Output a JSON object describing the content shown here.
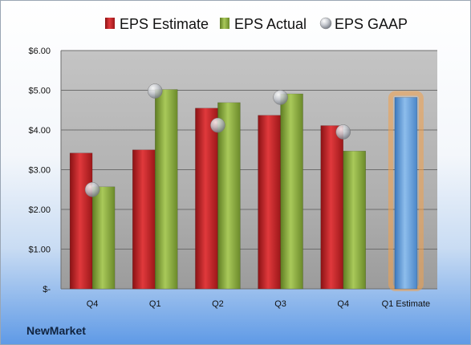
{
  "brand": "NewMarket",
  "chart_data": {
    "type": "bar",
    "title": "",
    "xlabel": "",
    "ylabel": "",
    "categories": [
      "Q4",
      "Q1",
      "Q2",
      "Q3",
      "Q4",
      "Q1 Estimate"
    ],
    "series": [
      {
        "name": "EPS Estimate",
        "type": "bar",
        "color": "#c0282b",
        "values": [
          3.42,
          3.5,
          4.55,
          4.37,
          4.11,
          null
        ]
      },
      {
        "name": "EPS Actual",
        "type": "bar",
        "color": "#8dae3f",
        "values": [
          2.57,
          5.02,
          4.69,
          4.91,
          3.47,
          null
        ]
      },
      {
        "name": "EPS GAAP",
        "type": "marker",
        "color": "#b8bcc4",
        "values": [
          2.5,
          4.98,
          4.12,
          4.82,
          3.95,
          null
        ]
      },
      {
        "name": "",
        "type": "bar",
        "color": "#6fa6dd",
        "highlight": "#f2a04b",
        "values": [
          null,
          null,
          null,
          null,
          null,
          4.82
        ]
      }
    ],
    "ylim": [
      0,
      6
    ],
    "yticks": [
      0,
      1,
      2,
      3,
      4,
      5,
      6
    ],
    "ytick_labels": [
      "$-",
      "$1.00",
      "$2.00",
      "$3.00",
      "$4.00",
      "$5.00",
      "$6.00"
    ],
    "grid": true,
    "legend_position": "top"
  }
}
